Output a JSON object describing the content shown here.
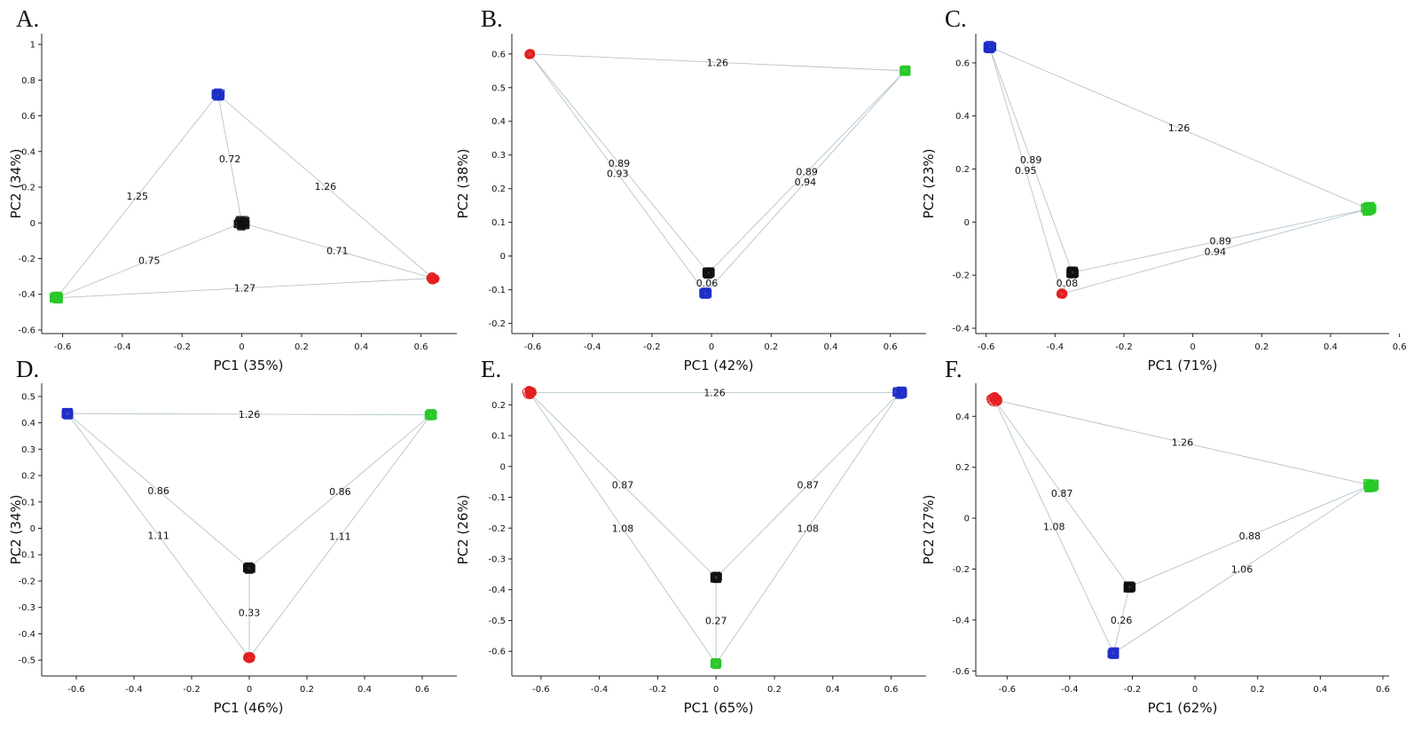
{
  "colors": {
    "red": "#e32020",
    "blue": "#1f2fc8",
    "green": "#28c828",
    "black": "#111111",
    "edge": "#b4c4cf"
  },
  "chart_data": [
    {
      "type": "scatter",
      "panel": "A.",
      "xlabel": "PC1 (35%)",
      "ylabel": "PC2 (34%)",
      "xlim": [
        -0.67,
        0.72
      ],
      "ylim": [
        -0.62,
        1.06
      ],
      "xticks": [
        -0.6,
        -0.4,
        -0.2,
        0,
        0.2,
        0.4,
        0.6
      ],
      "xtick_labels": [
        "-0.6",
        "-0.4",
        "-0.2",
        "0",
        "0.2",
        "0.4",
        "0.6"
      ],
      "yticks": [
        -0.6,
        -0.4,
        -0.2,
        0,
        0.2,
        0.4,
        0.6,
        0.8,
        1
      ],
      "ytick_labels": [
        "-0.6",
        "-0.4",
        "-0.2",
        "0",
        "0.2",
        "0.4",
        "0.6",
        "0.8",
        "1"
      ],
      "clusters": [
        {
          "color": "blue",
          "marker": "square",
          "x": -0.08,
          "y": 0.72,
          "spread": 0.01
        },
        {
          "color": "black",
          "marker": "square",
          "x": 0.0,
          "y": 0.0,
          "spread": 0.015
        },
        {
          "color": "red",
          "marker": "circle",
          "x": 0.64,
          "y": -0.31,
          "spread": 0.01
        },
        {
          "color": "green",
          "marker": "square",
          "x": -0.62,
          "y": -0.42,
          "spread": 0.01
        }
      ],
      "edges": [
        {
          "from": [
            -0.08,
            0.72
          ],
          "to": [
            0.0,
            0.0
          ],
          "label": "0.72",
          "t": 0.5
        },
        {
          "from": [
            -0.62,
            -0.42
          ],
          "to": [
            -0.08,
            0.72
          ],
          "label": "1.25",
          "t": 0.5
        },
        {
          "from": [
            -0.08,
            0.72
          ],
          "to": [
            0.64,
            -0.31
          ],
          "label": "1.26",
          "t": 0.5
        },
        {
          "from": [
            -0.62,
            -0.42
          ],
          "to": [
            0.0,
            0.0
          ],
          "label": "0.75",
          "t": 0.5
        },
        {
          "from": [
            0.0,
            0.0
          ],
          "to": [
            0.64,
            -0.31
          ],
          "label": "0.71",
          "t": 0.5
        },
        {
          "from": [
            -0.62,
            -0.42
          ],
          "to": [
            0.64,
            -0.31
          ],
          "label": "1.27",
          "t": 0.5
        }
      ]
    },
    {
      "type": "scatter",
      "panel": "B.",
      "xlabel": "PC1 (42%)",
      "ylabel": "PC2 (38%)",
      "xlim": [
        -0.67,
        0.72
      ],
      "ylim": [
        -0.23,
        0.66
      ],
      "xticks": [
        -0.6,
        -0.4,
        -0.2,
        0,
        0.2,
        0.4,
        0.6
      ],
      "xtick_labels": [
        "-0.6",
        "-0.4",
        "-0.2",
        "0",
        "0.2",
        "0.4",
        "0.6"
      ],
      "yticks": [
        -0.2,
        -0.1,
        0,
        0.1,
        0.2,
        0.3,
        0.4,
        0.5,
        0.6
      ],
      "ytick_labels": [
        "-0.2",
        "-0.1",
        "0",
        "0.1",
        "0.2",
        "0.3",
        "0.4",
        "0.5",
        "0.6"
      ],
      "clusters": [
        {
          "color": "red",
          "marker": "circle",
          "x": -0.61,
          "y": 0.6,
          "spread": 0.005
        },
        {
          "color": "green",
          "marker": "square",
          "x": 0.65,
          "y": 0.55,
          "spread": 0.005
        },
        {
          "color": "black",
          "marker": "square",
          "x": -0.01,
          "y": -0.05,
          "spread": 0.008
        },
        {
          "color": "blue",
          "marker": "square",
          "x": -0.02,
          "y": -0.11,
          "spread": 0.008
        }
      ],
      "edges": [
        {
          "from": [
            -0.61,
            0.6
          ],
          "to": [
            0.65,
            0.55
          ],
          "label": "1.26",
          "t": 0.5
        },
        {
          "from": [
            -0.61,
            0.6
          ],
          "to": [
            -0.01,
            -0.05
          ],
          "label": "0.89",
          "t": 0.5
        },
        {
          "from": [
            -0.61,
            0.6
          ],
          "to": [
            -0.02,
            -0.11
          ],
          "label": "0.93",
          "t": 0.5
        },
        {
          "from": [
            0.65,
            0.55
          ],
          "to": [
            -0.01,
            -0.05
          ],
          "label": "0.89",
          "t": 0.5
        },
        {
          "from": [
            0.65,
            0.55
          ],
          "to": [
            -0.02,
            -0.11
          ],
          "label": "0.94",
          "t": 0.5
        },
        {
          "from": [
            -0.01,
            -0.05
          ],
          "to": [
            -0.02,
            -0.11
          ],
          "label": "0.06",
          "t": 0.5
        }
      ]
    },
    {
      "type": "scatter",
      "panel": "C.",
      "xlabel": "PC1 (71%)",
      "ylabel": "PC2 (23%)",
      "xlim": [
        -0.63,
        0.57
      ],
      "ylim": [
        -0.42,
        0.71
      ],
      "xticks": [
        -0.6,
        -0.4,
        -0.2,
        0,
        0.2,
        0.4,
        0.6
      ],
      "xtick_labels": [
        "-0.6",
        "-0.4",
        "-0.2",
        "0",
        "0.2",
        "0.4",
        "0.6"
      ],
      "yticks": [
        -0.4,
        -0.2,
        0,
        0.2,
        0.4,
        0.6
      ],
      "ytick_labels": [
        "-0.4",
        "-0.2",
        "0",
        "0.2",
        "0.4",
        "0.6"
      ],
      "clusters": [
        {
          "color": "blue",
          "marker": "square",
          "x": -0.59,
          "y": 0.66,
          "spread": 0.008
        },
        {
          "color": "green",
          "marker": "square",
          "x": 0.51,
          "y": 0.05,
          "spread": 0.012
        },
        {
          "color": "black",
          "marker": "square",
          "x": -0.35,
          "y": -0.19,
          "spread": 0.008
        },
        {
          "color": "red",
          "marker": "circle",
          "x": -0.38,
          "y": -0.27,
          "spread": 0.005
        }
      ],
      "edges": [
        {
          "from": [
            -0.59,
            0.66
          ],
          "to": [
            0.51,
            0.05
          ],
          "label": "1.26",
          "t": 0.5
        },
        {
          "from": [
            -0.59,
            0.66
          ],
          "to": [
            -0.35,
            -0.19
          ],
          "label": "0.89",
          "t": 0.5
        },
        {
          "from": [
            -0.59,
            0.66
          ],
          "to": [
            -0.38,
            -0.27
          ],
          "label": "0.95",
          "t": 0.5
        },
        {
          "from": [
            0.51,
            0.05
          ],
          "to": [
            -0.35,
            -0.19
          ],
          "label": "0.89",
          "t": 0.5
        },
        {
          "from": [
            0.51,
            0.05
          ],
          "to": [
            -0.38,
            -0.27
          ],
          "label": "0.94",
          "t": 0.5
        },
        {
          "from": [
            -0.35,
            -0.19
          ],
          "to": [
            -0.38,
            -0.27
          ],
          "label": "0.08",
          "t": 0.5
        }
      ]
    },
    {
      "type": "scatter",
      "panel": "D.",
      "xlabel": "PC1 (46%)",
      "ylabel": "PC2 (34%)",
      "xlim": [
        -0.72,
        0.72
      ],
      "ylim": [
        -0.56,
        0.55
      ],
      "xticks": [
        -0.6,
        -0.4,
        -0.2,
        0,
        0.2,
        0.4,
        0.6
      ],
      "xtick_labels": [
        "-0.6",
        "-0.4",
        "-0.2",
        "0",
        "0.2",
        "0.4",
        "0.6"
      ],
      "yticks": [
        -0.5,
        -0.4,
        -0.3,
        -0.2,
        -0.1,
        0,
        0.1,
        0.2,
        0.3,
        0.4,
        0.5
      ],
      "ytick_labels": [
        "-0.5",
        "-0.4",
        "-0.3",
        "-0.2",
        "-0.1",
        "0",
        "0.1",
        "0.2",
        "0.3",
        "0.4",
        "0.5"
      ],
      "clusters": [
        {
          "color": "blue",
          "marker": "square",
          "x": -0.63,
          "y": 0.435,
          "spread": 0.008
        },
        {
          "color": "green",
          "marker": "square",
          "x": 0.63,
          "y": 0.43,
          "spread": 0.008
        },
        {
          "color": "black",
          "marker": "square",
          "x": 0.0,
          "y": -0.15,
          "spread": 0.008
        },
        {
          "color": "red",
          "marker": "circle",
          "x": 0.0,
          "y": -0.49,
          "spread": 0.008
        }
      ],
      "edges": [
        {
          "from": [
            -0.63,
            0.435
          ],
          "to": [
            0.63,
            0.43
          ],
          "label": "1.26",
          "t": 0.5
        },
        {
          "from": [
            -0.63,
            0.435
          ],
          "to": [
            0.0,
            -0.15
          ],
          "label": "0.86",
          "t": 0.5
        },
        {
          "from": [
            0.63,
            0.43
          ],
          "to": [
            0.0,
            -0.15
          ],
          "label": "0.86",
          "t": 0.5
        },
        {
          "from": [
            -0.63,
            0.435
          ],
          "to": [
            0.0,
            -0.49
          ],
          "label": "1.11",
          "t": 0.5
        },
        {
          "from": [
            0.63,
            0.43
          ],
          "to": [
            0.0,
            -0.49
          ],
          "label": "1.11",
          "t": 0.5
        },
        {
          "from": [
            0.0,
            -0.15
          ],
          "to": [
            0.0,
            -0.49
          ],
          "label": "0.33",
          "t": 0.5
        }
      ]
    },
    {
      "type": "scatter",
      "panel": "E.",
      "xlabel": "PC1 (65%)",
      "ylabel": "PC2 (26%)",
      "xlim": [
        -0.7,
        0.72
      ],
      "ylim": [
        -0.68,
        0.27
      ],
      "xticks": [
        -0.6,
        -0.4,
        -0.2,
        0,
        0.2,
        0.4,
        0.6
      ],
      "xtick_labels": [
        "-0.6",
        "-0.4",
        "-0.2",
        "0",
        "0.2",
        "0.4",
        "0.6"
      ],
      "yticks": [
        -0.6,
        -0.5,
        -0.4,
        -0.3,
        -0.2,
        -0.1,
        0,
        0.1,
        0.2
      ],
      "ytick_labels": [
        "-0.6",
        "-0.5",
        "-0.4",
        "-0.3",
        "-0.2",
        "-0.1",
        "0",
        "0.1",
        "0.2"
      ],
      "clusters": [
        {
          "color": "red",
          "marker": "circle",
          "x": -0.64,
          "y": 0.24,
          "spread": 0.012
        },
        {
          "color": "blue",
          "marker": "square",
          "x": 0.63,
          "y": 0.24,
          "spread": 0.012
        },
        {
          "color": "black",
          "marker": "square",
          "x": 0.0,
          "y": -0.36,
          "spread": 0.008
        },
        {
          "color": "green",
          "marker": "square",
          "x": 0.0,
          "y": -0.64,
          "spread": 0.006
        }
      ],
      "edges": [
        {
          "from": [
            -0.64,
            0.24
          ],
          "to": [
            0.63,
            0.24
          ],
          "label": "1.26",
          "t": 0.5
        },
        {
          "from": [
            -0.64,
            0.24
          ],
          "to": [
            0.0,
            -0.36
          ],
          "label": "0.87",
          "t": 0.5
        },
        {
          "from": [
            0.63,
            0.24
          ],
          "to": [
            0.0,
            -0.36
          ],
          "label": "0.87",
          "t": 0.5
        },
        {
          "from": [
            -0.64,
            0.24
          ],
          "to": [
            0.0,
            -0.64
          ],
          "label": "1.08",
          "t": 0.5
        },
        {
          "from": [
            0.63,
            0.24
          ],
          "to": [
            0.0,
            -0.64
          ],
          "label": "1.08",
          "t": 0.5
        },
        {
          "from": [
            0.0,
            -0.36
          ],
          "to": [
            0.0,
            -0.64
          ],
          "label": "0.27",
          "t": 0.5
        }
      ]
    },
    {
      "type": "scatter",
      "panel": "F.",
      "xlabel": "PC1 (62%)",
      "ylabel": "PC2 (27%)",
      "xlim": [
        -0.7,
        0.62
      ],
      "ylim": [
        -0.62,
        0.53
      ],
      "xticks": [
        -0.6,
        -0.4,
        -0.2,
        0,
        0.2,
        0.4,
        0.6
      ],
      "xtick_labels": [
        "-0.6",
        "-0.4",
        "-0.2",
        "0",
        "0.2",
        "0.4",
        "0.6"
      ],
      "yticks": [
        -0.6,
        -0.4,
        -0.2,
        0,
        0.2,
        0.4
      ],
      "ytick_labels": [
        "-0.6",
        "-0.4",
        "-0.2",
        "0",
        "0.2",
        "0.4"
      ],
      "clusters": [
        {
          "color": "red",
          "marker": "circle",
          "x": -0.64,
          "y": 0.465,
          "spread": 0.015
        },
        {
          "color": "green",
          "marker": "square",
          "x": 0.56,
          "y": 0.13,
          "spread": 0.015
        },
        {
          "color": "black",
          "marker": "square",
          "x": -0.21,
          "y": -0.27,
          "spread": 0.008
        },
        {
          "color": "blue",
          "marker": "square",
          "x": -0.26,
          "y": -0.53,
          "spread": 0.008
        }
      ],
      "edges": [
        {
          "from": [
            -0.64,
            0.465
          ],
          "to": [
            0.56,
            0.13
          ],
          "label": "1.26",
          "t": 0.5
        },
        {
          "from": [
            -0.64,
            0.465
          ],
          "to": [
            -0.21,
            -0.27
          ],
          "label": "0.87",
          "t": 0.5
        },
        {
          "from": [
            -0.64,
            0.465
          ],
          "to": [
            -0.26,
            -0.53
          ],
          "label": "1.08",
          "t": 0.5
        },
        {
          "from": [
            0.56,
            0.13
          ],
          "to": [
            -0.21,
            -0.27
          ],
          "label": "0.88",
          "t": 0.5
        },
        {
          "from": [
            0.56,
            0.13
          ],
          "to": [
            -0.26,
            -0.53
          ],
          "label": "1.06",
          "t": 0.5
        },
        {
          "from": [
            -0.21,
            -0.27
          ],
          "to": [
            -0.26,
            -0.53
          ],
          "label": "0.26",
          "t": 0.5
        }
      ]
    }
  ]
}
